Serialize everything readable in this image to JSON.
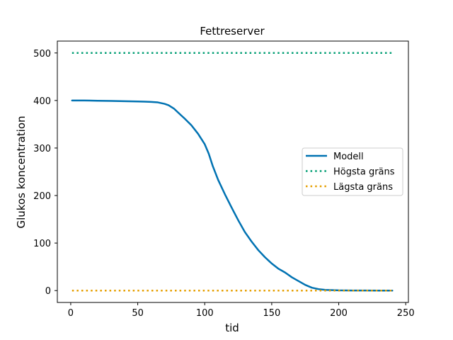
{
  "chart_data": {
    "type": "line",
    "title": "Fettreserver",
    "xlabel": "tid",
    "ylabel": "Glukos koncentration",
    "xlim": [
      -10,
      252
    ],
    "ylim": [
      -25,
      525
    ],
    "xticks": [
      0,
      50,
      100,
      150,
      200,
      250
    ],
    "yticks": [
      0,
      100,
      200,
      300,
      400,
      500
    ],
    "grid": false,
    "legend_position": "center-right",
    "series": [
      {
        "name": "Modell",
        "color": "#0072b2",
        "style": "solid",
        "x": [
          1,
          10,
          20,
          30,
          40,
          50,
          55,
          60,
          65,
          70,
          73,
          77,
          80,
          85,
          90,
          95,
          100,
          103,
          106,
          110,
          115,
          120,
          125,
          130,
          135,
          140,
          145,
          150,
          155,
          160,
          165,
          170,
          175,
          180,
          185,
          190,
          200,
          210,
          220,
          230,
          240
        ],
        "y": [
          400,
          400,
          399.5,
          399,
          398.5,
          398,
          397.5,
          397,
          396,
          393,
          390,
          383,
          375,
          362,
          348,
          330,
          308,
          288,
          262,
          233,
          203,
          175,
          148,
          123,
          103,
          85,
          70,
          57,
          46,
          38,
          28,
          20,
          12,
          6,
          3,
          1.5,
          0.5,
          0.2,
          0.1,
          0,
          0
        ]
      },
      {
        "name": "Högsta gräns",
        "color": "#009e73",
        "style": "dotted",
        "x": [
          1,
          240
        ],
        "y": [
          500,
          500
        ]
      },
      {
        "name": "Lägsta gräns",
        "color": "#e69f00",
        "style": "dotted",
        "x": [
          1,
          240
        ],
        "y": [
          0,
          0
        ]
      }
    ]
  }
}
